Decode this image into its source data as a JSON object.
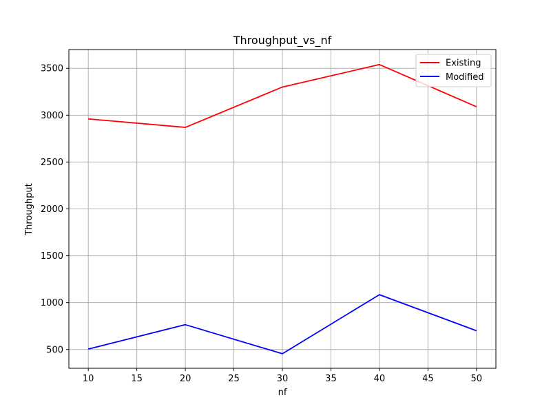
{
  "chart_data": {
    "type": "line",
    "title": "Throughput_vs_nf",
    "xlabel": "nf",
    "ylabel": "Throughput",
    "xlim": [
      8,
      52
    ],
    "ylim": [
      300,
      3700
    ],
    "xticks": [
      10,
      15,
      20,
      25,
      30,
      35,
      40,
      45,
      50
    ],
    "yticks": [
      500,
      1000,
      1500,
      2000,
      2500,
      3000,
      3500
    ],
    "grid": true,
    "legend_position": "top-right",
    "x": [
      10,
      20,
      30,
      40,
      50
    ],
    "series": [
      {
        "name": "Existing",
        "color": "#ff0000",
        "values": [
          2960,
          2870,
          3300,
          3540,
          3090
        ]
      },
      {
        "name": "Modified",
        "color": "#0000ff",
        "values": [
          505,
          765,
          455,
          1085,
          700
        ]
      }
    ]
  }
}
